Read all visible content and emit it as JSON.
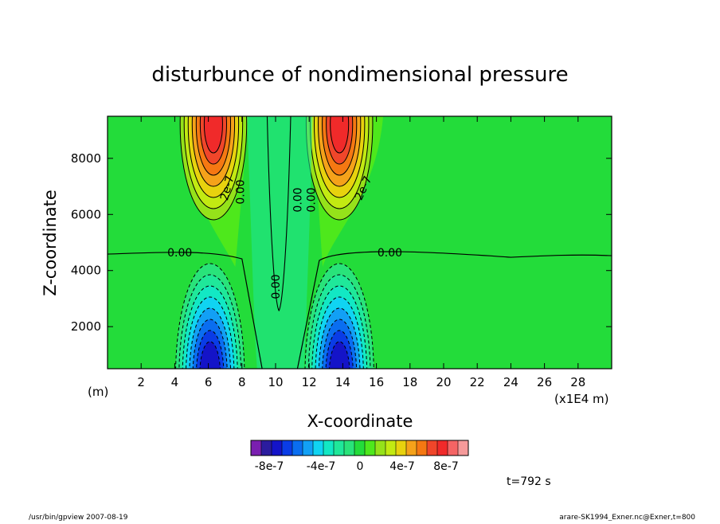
{
  "chart_data": {
    "type": "heatmap",
    "title": "disturbunce of nondimensional pressure",
    "xlabel": "X-coordinate",
    "ylabel": "Z-coordinate",
    "x_units_left": "(m)",
    "x_units_right": "(x1E4 m)",
    "xlim": [
      0,
      30
    ],
    "ylim": [
      500,
      9500
    ],
    "x_ticks": [
      "2",
      "4",
      "6",
      "8",
      "10",
      "12",
      "14",
      "16",
      "18",
      "20",
      "22",
      "24",
      "26",
      "28"
    ],
    "y_ticks": [
      "2000",
      "4000",
      "6000",
      "8000"
    ],
    "contour_labels": [
      "0.00",
      "0.00",
      "0.00",
      "0.00",
      "0.00",
      "0.00",
      "2e-7",
      "2e-7"
    ],
    "features": [
      {
        "kind": "high",
        "x": 6.3,
        "z": 8700,
        "value": 8e-07
      },
      {
        "kind": "high",
        "x": 13.8,
        "z": 8700,
        "value": 8e-07
      },
      {
        "kind": "low",
        "x": 6.1,
        "z": 800,
        "value": -8e-07
      },
      {
        "kind": "low",
        "x": 13.8,
        "z": 800,
        "value": -8e-07
      }
    ],
    "zero_contour_z": 4700,
    "colorbar": {
      "colors": [
        "#7a1fb0",
        "#2b1c9e",
        "#1414c8",
        "#0a3ce6",
        "#0a6ef0",
        "#12a0f5",
        "#10d4f2",
        "#12e8c4",
        "#1fe89a",
        "#29e37a",
        "#23dc3a",
        "#4ee81c",
        "#95e21a",
        "#c2ea12",
        "#e8d20e",
        "#f5a21a",
        "#f57812",
        "#f0462a",
        "#f02a2a",
        "#f56464",
        "#f59a9a"
      ],
      "labels": [
        "-8e-7",
        "-4e-7",
        "0",
        "4e-7",
        "8e-7"
      ]
    }
  },
  "time_label": "t=792 s",
  "footer_left": "/usr/bin/gpview   2007-08-19",
  "footer_right": "arare-SK1994_Exner.nc@Exner,t=800"
}
